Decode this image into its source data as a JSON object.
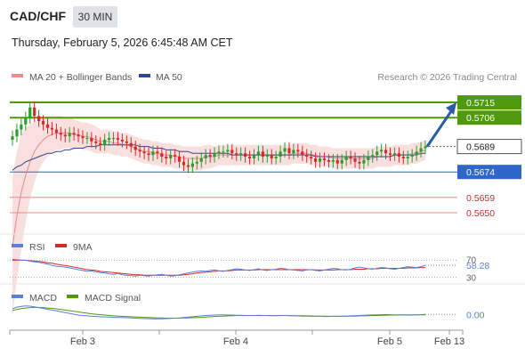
{
  "header": {
    "pair": "CAD/CHF",
    "timeframe": "30 MIN",
    "datetime": "Thursday, February 5, 2026 6:45:48 AM CET"
  },
  "legend": {
    "bollinger": "MA 20 + Bollinger Bands",
    "ma50": "MA 50",
    "copyright": "Research © 2026 Trading Central",
    "rsi": "RSI",
    "rsi_ma": "9MA",
    "macd": "MACD",
    "macd_signal": "MACD Signal"
  },
  "colors": {
    "up": "#2e9d2e",
    "down": "#d62b2b",
    "resistance": "#4f9a0a",
    "pivot": "#2f66c9",
    "support": "#f08a8a",
    "ma50": "#2c4a8a",
    "bollinger": "#f7c9c9",
    "arrow": "#2a5ca6"
  },
  "chart_data": [
    {
      "type": "candlestick",
      "panel": "price",
      "ylim": [
        0.564,
        0.5725
      ],
      "x_ticks": [
        "Feb 3",
        "Feb 4",
        "Feb 5",
        "Feb 13"
      ],
      "levels": [
        {
          "value": 0.5715,
          "label": "0.5715",
          "kind": "resistance"
        },
        {
          "value": 0.5706,
          "label": "0.5706",
          "kind": "resistance"
        },
        {
          "value": 0.5689,
          "label": "0.5689",
          "kind": "last"
        },
        {
          "value": 0.5674,
          "label": "0.5674",
          "kind": "pivot"
        },
        {
          "value": 0.5659,
          "label": "0.5659",
          "kind": "support"
        },
        {
          "value": 0.565,
          "label": "0.5650",
          "kind": "support"
        }
      ],
      "close": [
        0.5695,
        0.5699,
        0.5702,
        0.5706,
        0.5712,
        0.5707,
        0.5704,
        0.5702,
        0.57,
        0.5699,
        0.5697,
        0.5696,
        0.5695,
        0.5697,
        0.5696,
        0.5695,
        0.5694,
        0.5694,
        0.5692,
        0.5691,
        0.569,
        0.5693,
        0.5694,
        0.5694,
        0.5693,
        0.5692,
        0.5691,
        0.5689,
        0.5687,
        0.5686,
        0.5685,
        0.5684,
        0.5686,
        0.5685,
        0.5683,
        0.5682,
        0.5684,
        0.5683,
        0.568,
        0.5678,
        0.5677,
        0.5679,
        0.568,
        0.5682,
        0.5684,
        0.5683,
        0.5685,
        0.5686,
        0.5686,
        0.5687,
        0.5685,
        0.5684,
        0.5685,
        0.5683,
        0.5682,
        0.5684,
        0.5686,
        0.5683,
        0.5684,
        0.5682,
        0.5683,
        0.5686,
        0.5688,
        0.5685,
        0.5687,
        0.5686,
        0.5684,
        0.5683,
        0.5682,
        0.568,
        0.5682,
        0.5681,
        0.568,
        0.5681,
        0.5679,
        0.5681,
        0.5683,
        0.5682,
        0.568,
        0.5679,
        0.5681,
        0.5683,
        0.5684,
        0.5686,
        0.5687,
        0.5685,
        0.5684,
        0.5685,
        0.5683,
        0.5682,
        0.5683,
        0.5684,
        0.5686,
        0.5688,
        0.5689
      ],
      "ma20": [
        0.563,
        0.5648,
        0.5662,
        0.5672,
        0.568,
        0.5686,
        0.569,
        0.5693,
        0.5695,
        0.5696,
        0.5697,
        0.5697,
        0.5697,
        0.5697,
        0.5696,
        0.5696,
        0.5695,
        0.5695,
        0.5694,
        0.5693,
        0.5692,
        0.5692,
        0.5692,
        0.5691,
        0.5691,
        0.569,
        0.569,
        0.5689,
        0.5688,
        0.5687,
        0.5686,
        0.5686,
        0.5685,
        0.5685,
        0.5684,
        0.5684,
        0.5684,
        0.5683,
        0.5683,
        0.5682,
        0.5682,
        0.5682,
        0.5682,
        0.5682,
        0.5683,
        0.5683,
        0.5683,
        0.5684,
        0.5684,
        0.5684,
        0.5684,
        0.5684,
        0.5684,
        0.5684,
        0.5684,
        0.5684,
        0.5684,
        0.5684,
        0.5684,
        0.5684,
        0.5684,
        0.5684,
        0.5684,
        0.5684,
        0.5685,
        0.5685,
        0.5685,
        0.5685,
        0.5684,
        0.5684,
        0.5683,
        0.5683,
        0.5683,
        0.5682,
        0.5682,
        0.5682,
        0.5682,
        0.5682,
        0.5682,
        0.5682,
        0.5682,
        0.5682,
        0.5682,
        0.5683,
        0.5683,
        0.5683,
        0.5683,
        0.5684,
        0.5684,
        0.5684,
        0.5684,
        0.5685,
        0.5685,
        0.5686,
        0.5687
      ],
      "ma50": [
        0.5675,
        0.5677,
        0.5678,
        0.568,
        0.5681,
        0.5682,
        0.5683,
        0.5684,
        0.5685,
        0.5685,
        0.5686,
        0.5686,
        0.5687,
        0.5687,
        0.5688,
        0.5688,
        0.5688,
        0.5689,
        0.5689,
        0.5689,
        0.569,
        0.569,
        0.569,
        0.569,
        0.569,
        0.569,
        0.569,
        0.569,
        0.569,
        0.5689,
        0.5689,
        0.5689,
        0.5688,
        0.5688,
        0.5688,
        0.5687,
        0.5687,
        0.5687,
        0.5686,
        0.5686,
        0.5686,
        0.5685,
        0.5685,
        0.5685,
        0.5685,
        0.5685,
        0.5685,
        0.5685,
        0.5685,
        0.5685,
        0.5684,
        0.5684,
        0.5684,
        0.5684,
        0.5684,
        0.5684,
        0.5684,
        0.5684,
        0.5684,
        0.5684,
        0.5684,
        0.5684,
        0.5684,
        0.5684,
        0.5684,
        0.5684,
        0.5684,
        0.5684,
        0.5684,
        0.5683,
        0.5683,
        0.5683,
        0.5683,
        0.5683,
        0.5683,
        0.5683,
        0.5683,
        0.5683,
        0.5683,
        0.5683,
        0.5683,
        0.5683,
        0.5683,
        0.5683,
        0.5683,
        0.5683,
        0.5683,
        0.5684,
        0.5684,
        0.5684,
        0.5684,
        0.5684,
        0.5684,
        0.5685,
        0.5685
      ],
      "bb_width": [
        0.004,
        0.0038,
        0.0034,
        0.0028,
        0.0022,
        0.0018,
        0.0015,
        0.0013,
        0.0012,
        0.0011,
        0.001,
        0.001,
        0.0009,
        0.0009,
        0.0009,
        0.0008,
        0.0008,
        0.0008,
        0.0008,
        0.0008,
        0.0007,
        0.0007,
        0.0007,
        0.0007,
        0.0007,
        0.0007,
        0.0007,
        0.0007,
        0.0007,
        0.0007,
        0.0007,
        0.0007,
        0.0007,
        0.0007,
        0.0007,
        0.0007,
        0.0007,
        0.0007,
        0.0007,
        0.0007,
        0.0007,
        0.0007,
        0.0007,
        0.0007,
        0.0007,
        0.0007,
        0.0006,
        0.0006,
        0.0006,
        0.0006,
        0.0006,
        0.0006,
        0.0006,
        0.0006,
        0.0006,
        0.0006,
        0.0006,
        0.0006,
        0.0006,
        0.0006,
        0.0006,
        0.0006,
        0.0006,
        0.0006,
        0.0006,
        0.0006,
        0.0006,
        0.0006,
        0.0006,
        0.0006,
        0.0006,
        0.0006,
        0.0006,
        0.0006,
        0.0006,
        0.0006,
        0.0006,
        0.0006,
        0.0006,
        0.0006,
        0.0006,
        0.0006,
        0.0006,
        0.0006,
        0.0006,
        0.0006,
        0.0006,
        0.0006,
        0.0006,
        0.0006,
        0.0006,
        0.0006,
        0.0006,
        0.0006,
        0.0006
      ],
      "forecast": {
        "from": 0.5689,
        "to": 0.5715
      }
    },
    {
      "type": "line",
      "panel": "rsi",
      "ylim": [
        25,
        75
      ],
      "y_ticks": [
        "70",
        "30"
      ],
      "last_value": "58.28",
      "series": [
        {
          "name": "RSI",
          "values": [
            72,
            71,
            70,
            70,
            68,
            66,
            65,
            63,
            61,
            58,
            56,
            55,
            54,
            52,
            50,
            48,
            46,
            44,
            45,
            43,
            41,
            40,
            38,
            37,
            39,
            36,
            35,
            34,
            33,
            35,
            34,
            33,
            35,
            36,
            37,
            35,
            33,
            34,
            36,
            38,
            40,
            42,
            44,
            45,
            44,
            46,
            47,
            45,
            44,
            46,
            48,
            50,
            49,
            47,
            46,
            48,
            50,
            47,
            46,
            48,
            49,
            51,
            50,
            48,
            47,
            46,
            45,
            47,
            48,
            46,
            45,
            47,
            49,
            51,
            50,
            48,
            47,
            49,
            52,
            54,
            52,
            50,
            49,
            51,
            53,
            52,
            50,
            49,
            51,
            53,
            55,
            54,
            53,
            55,
            58
          ]
        },
        {
          "name": "9MA",
          "values": [
            70,
            70,
            70,
            70,
            69,
            68,
            67,
            66,
            64,
            63,
            61,
            59,
            58,
            56,
            54,
            52,
            50,
            48,
            47,
            46,
            44,
            43,
            42,
            41,
            40,
            39,
            38,
            37,
            36,
            36,
            35,
            35,
            35,
            35,
            35,
            35,
            35,
            35,
            35,
            36,
            37,
            38,
            40,
            41,
            42,
            43,
            44,
            45,
            45,
            45,
            46,
            47,
            47,
            47,
            47,
            47,
            48,
            48,
            48,
            48,
            48,
            48,
            48,
            48,
            48,
            48,
            48,
            48,
            48,
            47,
            47,
            47,
            47,
            47,
            48,
            48,
            48,
            48,
            49,
            49,
            49,
            50,
            50,
            50,
            51,
            51,
            51,
            51,
            51,
            51,
            52,
            52,
            52,
            53,
            53
          ]
        }
      ]
    },
    {
      "type": "line",
      "panel": "macd",
      "ylim": [
        -0.0006,
        0.0006
      ],
      "last_value": "0.00",
      "series": [
        {
          "name": "MACD",
          "values": [
            0.0003,
            0.00038,
            0.00042,
            0.00044,
            0.00043,
            0.0004,
            0.00036,
            0.00032,
            0.00028,
            0.00024,
            0.0002,
            0.00016,
            0.00012,
            8e-05,
            4e-05,
            0.0,
            -2e-05,
            -4e-05,
            -6e-05,
            -7e-05,
            -8e-05,
            -9e-05,
            -0.0001,
            -0.00011,
            -0.00012,
            -0.00012,
            -0.00013,
            -0.00014,
            -0.00015,
            -0.00016,
            -0.00017,
            -0.00017,
            -0.00018,
            -0.00018,
            -0.00018,
            -0.00017,
            -0.00016,
            -0.00015,
            -0.00014,
            -0.00012,
            -0.0001,
            -8e-05,
            -6e-05,
            -4e-05,
            -2e-05,
            -1e-05,
            0.0,
            1e-05,
            1e-05,
            0.0,
            0.0,
            -1e-05,
            -1e-05,
            -2e-05,
            -2e-05,
            -2e-05,
            -1e-05,
            -2e-05,
            -2e-05,
            -3e-05,
            -3e-05,
            -2e-05,
            -2e-05,
            -3e-05,
            -3e-05,
            -4e-05,
            -5e-05,
            -5e-05,
            -6e-05,
            -6e-05,
            -6e-05,
            -7e-05,
            -7e-05,
            -6e-05,
            -6e-05,
            -5e-05,
            -5e-05,
            -4e-05,
            -3e-05,
            -2e-05,
            -1e-05,
            0.0,
            1e-05,
            1e-05,
            2e-05,
            2e-05,
            2e-05,
            1e-05,
            1e-05,
            1e-05,
            0.0,
            0.0,
            1e-05,
            2e-05,
            3e-05
          ]
        },
        {
          "name": "MACD Signal",
          "values": [
            0.00022,
            0.00027,
            0.00031,
            0.00034,
            0.00036,
            0.00037,
            0.00037,
            0.00036,
            0.00034,
            0.00032,
            0.0003,
            0.00027,
            0.00024,
            0.00021,
            0.00018,
            0.00015,
            0.00012,
            9e-05,
            6e-05,
            4e-05,
            2e-05,
            0.0,
            -2e-05,
            -4e-05,
            -5e-05,
            -6e-05,
            -7e-05,
            -8e-05,
            -9e-05,
            -0.0001,
            -0.00011,
            -0.00012,
            -0.00013,
            -0.00014,
            -0.00014,
            -0.00015,
            -0.00015,
            -0.00015,
            -0.00015,
            -0.00014,
            -0.00014,
            -0.00013,
            -0.00012,
            -0.00011,
            -0.0001,
            -8e-05,
            -7e-05,
            -6e-05,
            -5e-05,
            -4e-05,
            -3e-05,
            -2e-05,
            -2e-05,
            -2e-05,
            -2e-05,
            -2e-05,
            -2e-05,
            -2e-05,
            -2e-05,
            -2e-05,
            -2e-05,
            -2e-05,
            -2e-05,
            -2e-05,
            -3e-05,
            -3e-05,
            -3e-05,
            -4e-05,
            -4e-05,
            -5e-05,
            -5e-05,
            -5e-05,
            -6e-05,
            -6e-05,
            -6e-05,
            -6e-05,
            -6e-05,
            -5e-05,
            -5e-05,
            -4e-05,
            -4e-05,
            -3e-05,
            -2e-05,
            -2e-05,
            -1e-05,
            -1e-05,
            0.0,
            0.0,
            0.0,
            1e-05,
            1e-05,
            1e-05,
            1e-05,
            1e-05,
            1e-05
          ]
        }
      ]
    }
  ]
}
